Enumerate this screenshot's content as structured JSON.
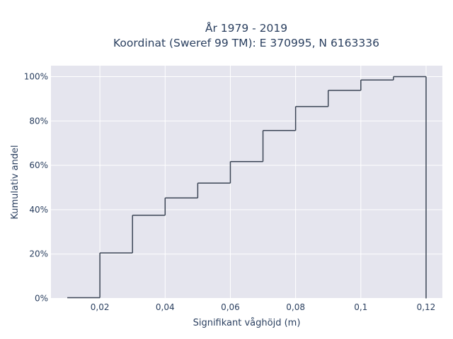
{
  "chart_data": {
    "type": "line",
    "subtype": "cumulative step",
    "title_lines": [
      "År 1979 - 2019",
      "Koordinat (Sweref 99 TM): E 370995, N 6163336"
    ],
    "xlabel": "Signifikant våghöjd (m)",
    "ylabel": "Kumulativ andel",
    "xlim": [
      0.005,
      0.125
    ],
    "ylim": [
      0,
      100
    ],
    "x_ticks": [
      0.02,
      0.04,
      0.06,
      0.08,
      0.1,
      0.12
    ],
    "x_tick_labels": [
      "0,02",
      "0,04",
      "0,06",
      "0,08",
      "0,1",
      "0,12"
    ],
    "y_ticks": [
      0,
      20,
      40,
      60,
      80,
      100
    ],
    "y_tick_labels": [
      "0%",
      "20%",
      "40%",
      "60%",
      "80%",
      "100%"
    ],
    "grid": true,
    "line_color": "#3b4555",
    "plot_background": "#e5e5ee",
    "series": [
      {
        "x": [
          0.01,
          0.02,
          0.03,
          0.04,
          0.05,
          0.06,
          0.07,
          0.08,
          0.09,
          0.1,
          0.11
        ],
        "values": [
          0.3,
          20.5,
          37.5,
          45.3,
          52.0,
          61.7,
          75.7,
          86.5,
          93.8,
          98.5,
          100.0
        ],
        "end_x": 0.12
      }
    ]
  }
}
